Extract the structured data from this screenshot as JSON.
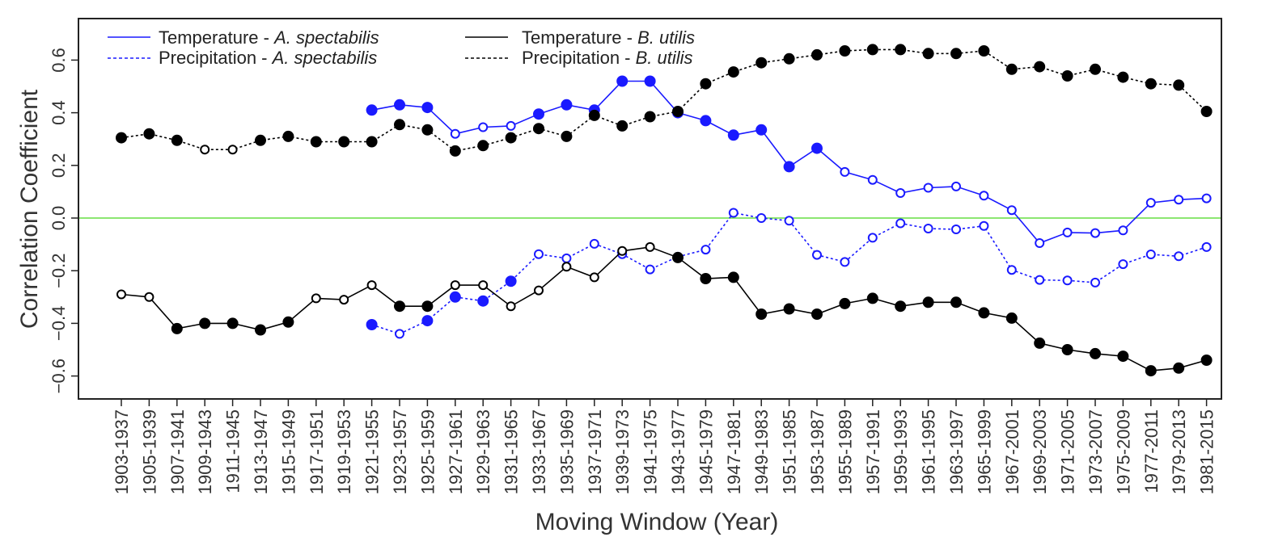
{
  "chart_data": {
    "type": "line",
    "title": "",
    "xlabel": "Moving Window (Year)",
    "ylabel": "Correlation Coefficient",
    "ylim": [
      -0.65,
      0.75
    ],
    "yticks": [
      -0.6,
      -0.4,
      -0.2,
      0.0,
      0.2,
      0.4,
      0.6
    ],
    "ytick_labels": [
      "−0.6",
      "−0.4",
      "−0.2",
      "0.0",
      "0.2",
      "0.4",
      "0.6"
    ],
    "reference_line": {
      "y": 0.0,
      "color": "#66dd44"
    },
    "categories": [
      "1903-1937",
      "1905-1939",
      "1907-1941",
      "1909-1943",
      "1911-1945",
      "1913-1947",
      "1915-1949",
      "1917-1951",
      "1919-1953",
      "1921-1955",
      "1923-1957",
      "1925-1959",
      "1927-1961",
      "1929-1963",
      "1931-1965",
      "1933-1967",
      "1935-1969",
      "1937-1971",
      "1939-1973",
      "1941-1975",
      "1943-1977",
      "1945-1979",
      "1947-1981",
      "1949-1983",
      "1951-1985",
      "1953-1987",
      "1955-1989",
      "1957-1991",
      "1959-1993",
      "1961-1995",
      "1963-1997",
      "1965-1999",
      "1967-2001",
      "1969-2003",
      "1971-2005",
      "1973-2007",
      "1975-2009",
      "1977-2011",
      "1979-2013",
      "1981-2015"
    ],
    "legend": {
      "placement": "top-left",
      "entries": [
        {
          "prefix": "Temperature - ",
          "species": "A. spectabilis",
          "color": "#1a1aff",
          "dash": "solid"
        },
        {
          "prefix": "Precipitation - ",
          "species": "A. spectabilis",
          "color": "#1a1aff",
          "dash": "dashed"
        },
        {
          "prefix": "Temperature - ",
          "species": "B. utilis",
          "color": "#000000",
          "dash": "solid"
        },
        {
          "prefix": "Precipitation - ",
          "species": "B. utilis",
          "color": "#000000",
          "dash": "dashed"
        }
      ]
    },
    "series": [
      {
        "name": "Temperature - A. spectabilis",
        "color": "#1a1aff",
        "dash": "solid",
        "values": [
          null,
          null,
          null,
          null,
          null,
          null,
          null,
          null,
          null,
          0.41,
          0.43,
          0.42,
          0.32,
          0.345,
          0.35,
          0.395,
          0.43,
          0.41,
          0.52,
          0.52,
          0.4,
          0.37,
          0.315,
          0.335,
          0.195,
          0.265,
          0.175,
          0.145,
          0.095,
          0.115,
          0.12,
          0.085,
          0.03,
          -0.095,
          -0.055,
          -0.057,
          -0.047,
          0.058,
          0.07,
          0.075
        ],
        "filled": [
          null,
          null,
          null,
          null,
          null,
          null,
          null,
          null,
          null,
          true,
          true,
          true,
          false,
          false,
          false,
          true,
          true,
          true,
          true,
          true,
          true,
          true,
          true,
          true,
          true,
          true,
          false,
          false,
          false,
          false,
          false,
          false,
          false,
          false,
          false,
          false,
          false,
          false,
          false,
          false
        ]
      },
      {
        "name": "Precipitation - A. spectabilis",
        "color": "#1a1aff",
        "dash": "dashed",
        "values": [
          null,
          null,
          null,
          null,
          null,
          null,
          null,
          null,
          null,
          -0.405,
          -0.44,
          -0.39,
          -0.3,
          -0.315,
          -0.24,
          -0.137,
          -0.153,
          -0.098,
          -0.137,
          -0.195,
          -0.147,
          -0.12,
          0.02,
          0.0,
          -0.01,
          -0.14,
          -0.167,
          -0.075,
          -0.02,
          -0.04,
          -0.043,
          -0.03,
          -0.197,
          -0.235,
          -0.237,
          -0.245,
          -0.175,
          -0.138,
          -0.145,
          -0.11
        ],
        "filled": [
          null,
          null,
          null,
          null,
          null,
          null,
          null,
          null,
          null,
          true,
          false,
          true,
          true,
          true,
          true,
          false,
          false,
          false,
          false,
          false,
          false,
          false,
          false,
          false,
          false,
          false,
          false,
          false,
          false,
          false,
          false,
          false,
          false,
          false,
          false,
          false,
          false,
          false,
          false,
          false
        ]
      },
      {
        "name": "Temperature - B. utilis",
        "color": "#000000",
        "dash": "solid",
        "values": [
          -0.29,
          -0.3,
          -0.42,
          -0.4,
          -0.4,
          -0.425,
          -0.395,
          -0.305,
          -0.31,
          -0.255,
          -0.335,
          -0.335,
          -0.255,
          -0.255,
          -0.335,
          -0.275,
          -0.185,
          -0.225,
          -0.125,
          -0.11,
          -0.15,
          -0.23,
          -0.225,
          -0.365,
          -0.345,
          -0.365,
          -0.325,
          -0.305,
          -0.335,
          -0.32,
          -0.32,
          -0.36,
          -0.38,
          -0.475,
          -0.5,
          -0.515,
          -0.525,
          -0.58,
          -0.57,
          -0.54
        ],
        "filled": [
          false,
          false,
          true,
          true,
          true,
          true,
          true,
          false,
          false,
          false,
          true,
          true,
          false,
          false,
          false,
          false,
          false,
          false,
          false,
          false,
          true,
          true,
          true,
          true,
          true,
          true,
          true,
          true,
          true,
          true,
          true,
          true,
          true,
          true,
          true,
          true,
          true,
          true,
          true,
          true
        ]
      },
      {
        "name": "Precipitation - B. utilis",
        "color": "#000000",
        "dash": "dashed",
        "values": [
          0.305,
          0.32,
          0.295,
          0.26,
          0.26,
          0.295,
          0.31,
          0.29,
          0.29,
          0.29,
          0.355,
          0.335,
          0.255,
          0.275,
          0.305,
          0.34,
          0.31,
          0.39,
          0.35,
          0.385,
          0.405,
          0.51,
          0.555,
          0.59,
          0.605,
          0.62,
          0.635,
          0.64,
          0.64,
          0.625,
          0.625,
          0.635,
          0.565,
          0.575,
          0.54,
          0.565,
          0.535,
          0.51,
          0.505,
          0.405
        ],
        "filled": [
          true,
          true,
          true,
          false,
          false,
          true,
          true,
          true,
          true,
          true,
          true,
          true,
          true,
          true,
          true,
          true,
          true,
          true,
          true,
          true,
          true,
          true,
          true,
          true,
          true,
          true,
          true,
          true,
          true,
          true,
          true,
          true,
          true,
          true,
          true,
          true,
          true,
          true,
          true,
          true
        ]
      }
    ]
  }
}
